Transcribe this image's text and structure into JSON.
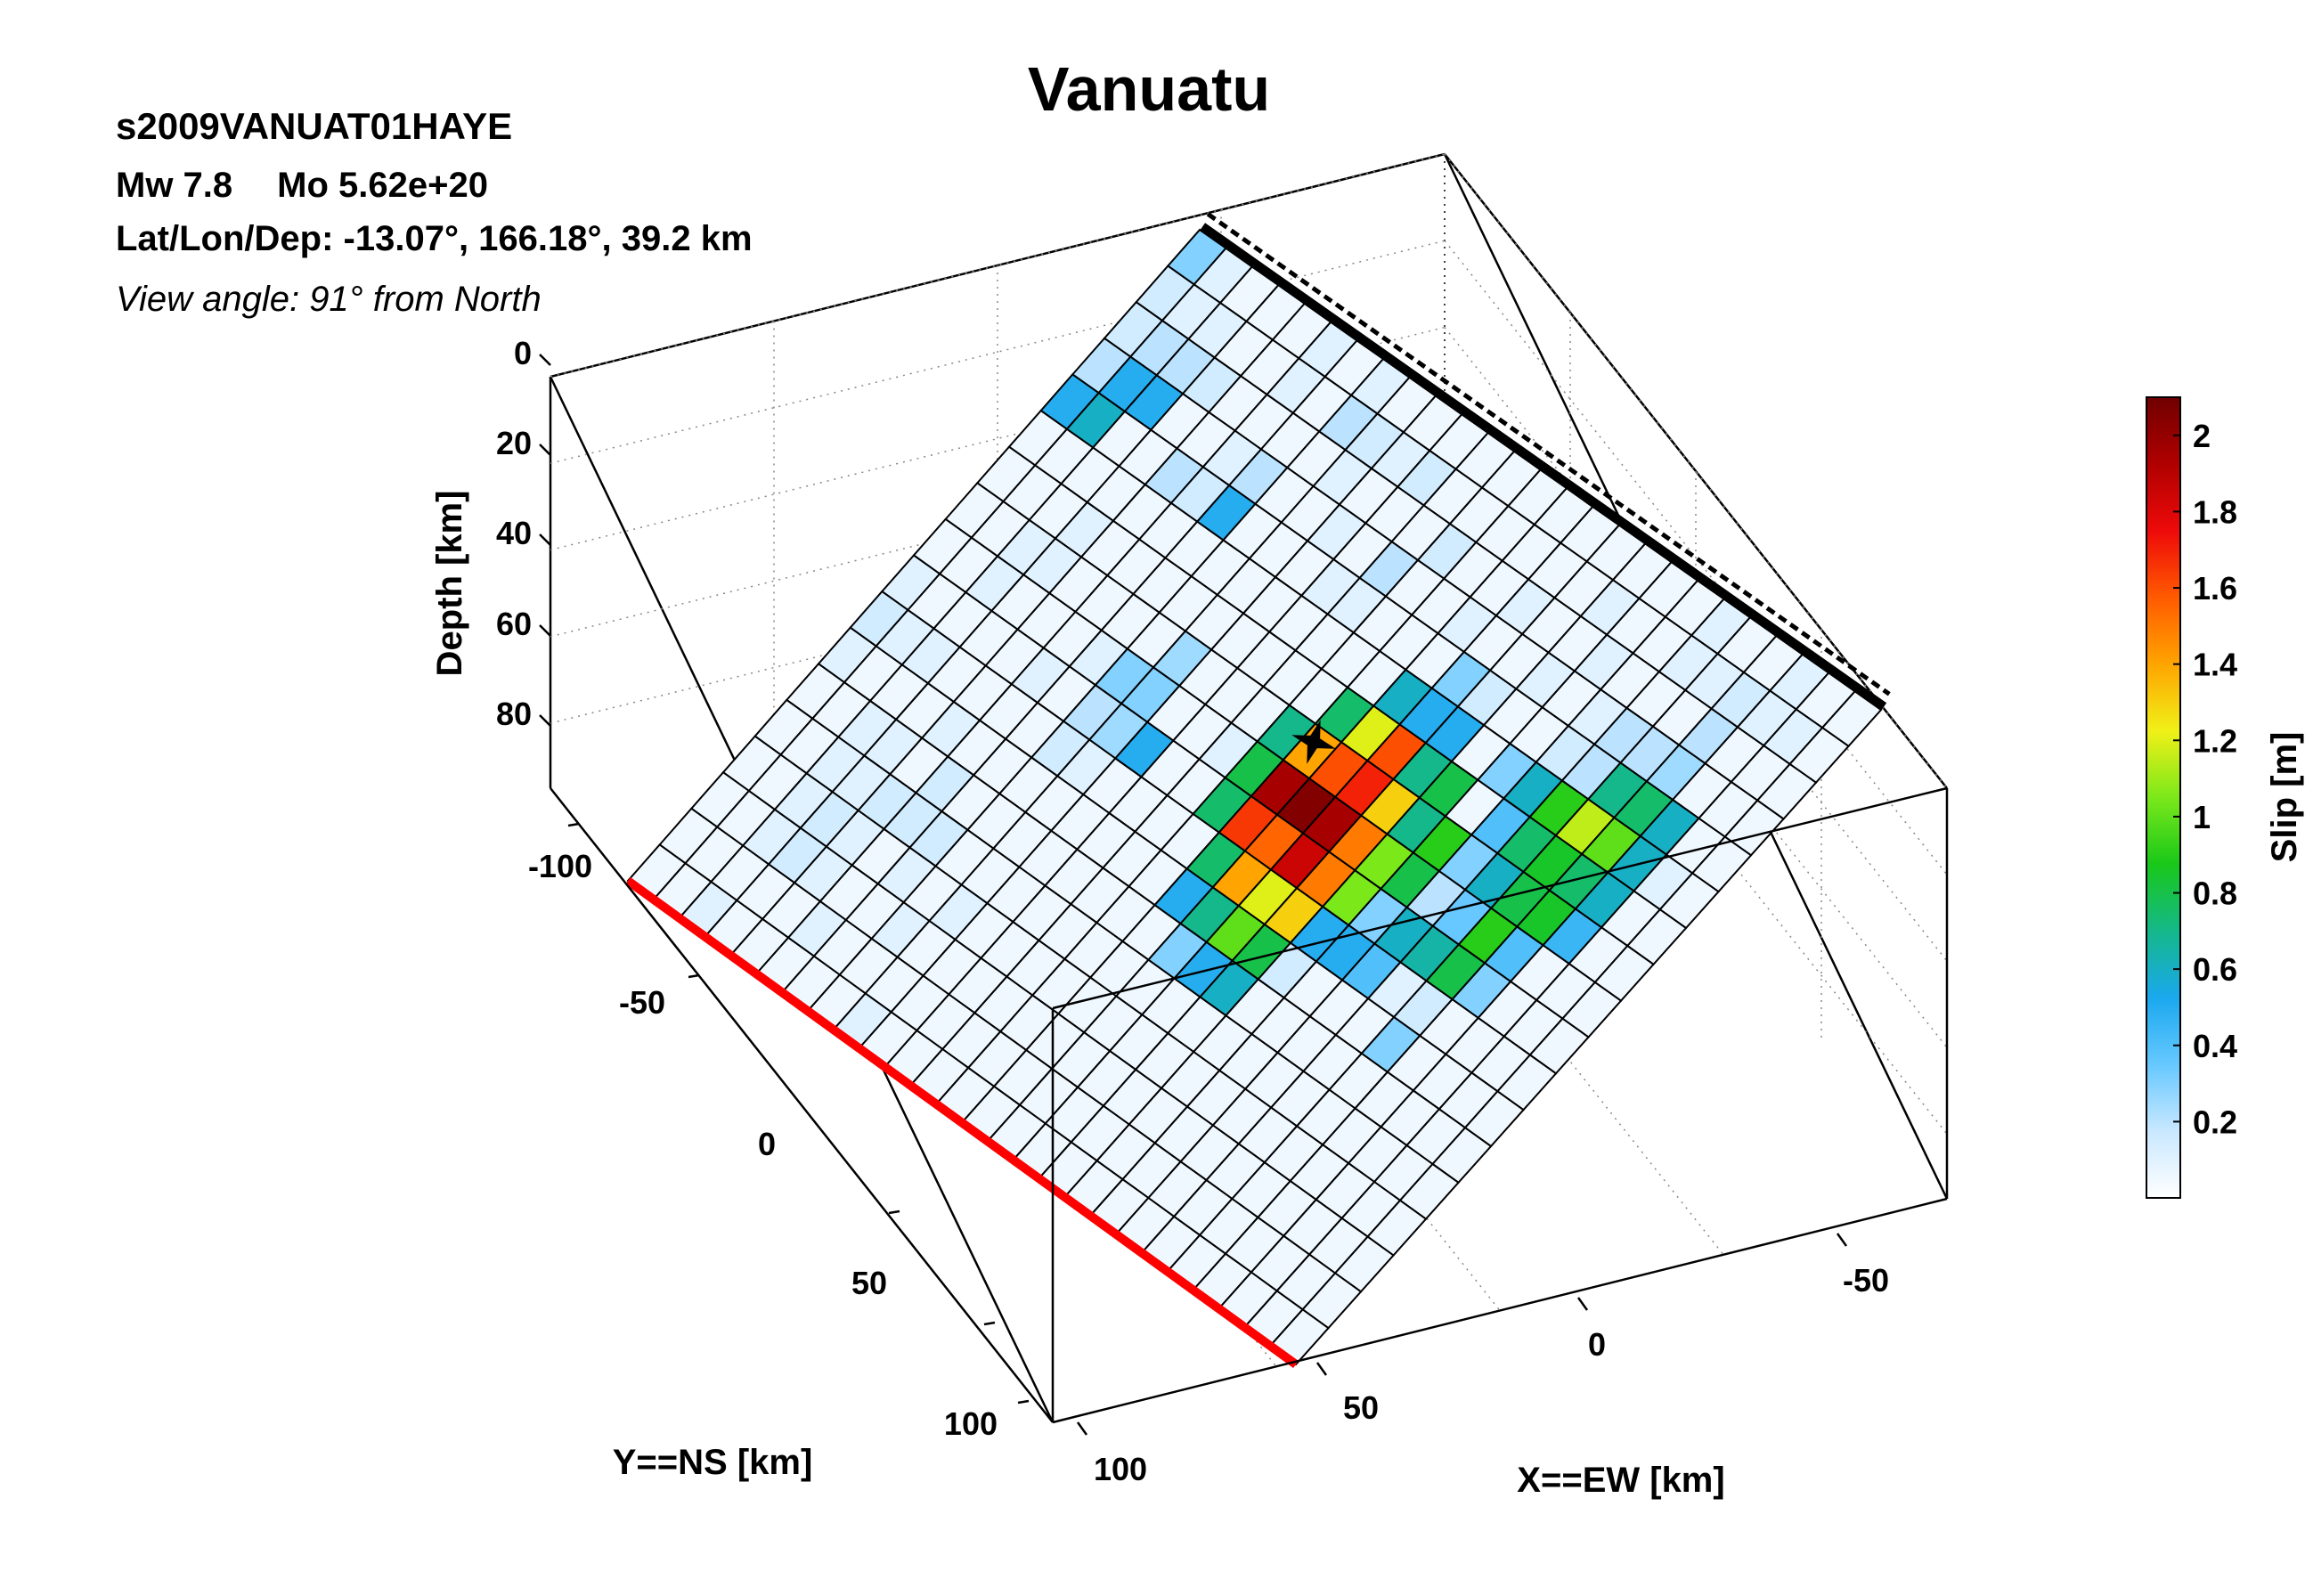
{
  "header": {
    "title": "Vanuatu",
    "event_id": "s2009VANUAT01HAYE",
    "mw": "Mw 7.8",
    "mo": "Mo 5.62e+20",
    "location": "Lat/Lon/Dep: -13.07°, 166.18°, 39.2 km",
    "view_angle": "View angle:  91° from North"
  },
  "colorbar": {
    "label": "Slip [m]",
    "ticks": [
      "0.2",
      "0.4",
      "0.6",
      "0.8",
      "1",
      "1.2",
      "1.4",
      "1.6",
      "1.8",
      "2"
    ],
    "colormap": [
      "#ffffff",
      "#c9e8ff",
      "#66c8ff",
      "#1aa8ee",
      "#14b88a",
      "#19c819",
      "#7be81a",
      "#f0f018",
      "#ffa400",
      "#ff5a00",
      "#ee0a0a",
      "#b00000",
      "#700000"
    ]
  },
  "chart_data": {
    "type": "heatmap",
    "title": "Vanuatu",
    "xlabel": "X==EW [km]",
    "ylabel": "Y==NS [km]",
    "zlabel": "Depth [km]",
    "colorbar_label": "Slip [m]",
    "x_ticks": [
      "-50",
      "0",
      "50",
      "100"
    ],
    "y_ticks": [
      "-100",
      "-50",
      "0",
      "50",
      "100"
    ],
    "z_ticks": [
      "0",
      "20",
      "40",
      "60",
      "80"
    ],
    "xlim": [
      -80,
      110
    ],
    "ylim": [
      -130,
      120
    ],
    "zlim": [
      0,
      95
    ],
    "clim": [
      0,
      2.1
    ],
    "hypocenter": {
      "x": 0,
      "y": -8,
      "depth": 39.2
    },
    "slip_grid": [
      [
        0.3,
        0.15,
        0.15,
        0.2,
        0.5,
        0.05,
        0.05,
        0.05,
        0.05,
        0.1,
        0.15,
        0.1,
        0.05,
        0.05,
        0.05,
        0.05,
        0.05,
        0.05
      ],
      [
        0.1,
        0.1,
        0.2,
        0.5,
        0.6,
        0.05,
        0.05,
        0.05,
        0.05,
        0.05,
        0.1,
        0.05,
        0.05,
        0.05,
        0.05,
        0.05,
        0.05,
        0.05
      ],
      [
        0.05,
        0.1,
        0.2,
        0.5,
        0.05,
        0.05,
        0.05,
        0.1,
        0.1,
        0.05,
        0.1,
        0.05,
        0.1,
        0.1,
        0.1,
        0.1,
        0.05,
        0.1
      ],
      [
        0.05,
        0.05,
        0.15,
        0.05,
        0.05,
        0.05,
        0.1,
        0.1,
        0.05,
        0.05,
        0.05,
        0.05,
        0.1,
        0.1,
        0.15,
        0.15,
        0.05,
        0.05
      ],
      [
        0.05,
        0.05,
        0.05,
        0.05,
        0.2,
        0.05,
        0.05,
        0.05,
        0.05,
        0.05,
        0.05,
        0.1,
        0.05,
        0.15,
        0.1,
        0.1,
        0.05,
        0.05
      ],
      [
        0.1,
        0.1,
        0.05,
        0.1,
        0.15,
        0.05,
        0.05,
        0.05,
        0.05,
        0.1,
        0.05,
        0.05,
        0.15,
        0.15,
        0.05,
        0.05,
        0.1,
        0.05
      ],
      [
        0.05,
        0.05,
        0.05,
        0.2,
        0.5,
        0.05,
        0.05,
        0.05,
        0.1,
        0.05,
        0.05,
        0.05,
        0.05,
        0.15,
        0.1,
        0.05,
        0.05,
        0.05
      ],
      [
        0.1,
        0.2,
        0.05,
        0.05,
        0.05,
        0.05,
        0.05,
        0.05,
        0.3,
        0.2,
        0.15,
        0.05,
        0.05,
        0.05,
        0.05,
        0.1,
        0.05,
        0.05
      ],
      [
        0.05,
        0.15,
        0.1,
        0.05,
        0.05,
        0.05,
        0.05,
        0.25,
        0.3,
        0.25,
        0.1,
        0.05,
        0.05,
        0.05,
        0.1,
        0.05,
        0.05,
        0.1
      ],
      [
        0.05,
        0.1,
        0.05,
        0.1,
        0.05,
        0.05,
        0.05,
        0.05,
        0.05,
        0.5,
        0.05,
        0.05,
        0.05,
        0.05,
        0.05,
        0.05,
        0.05,
        0.05
      ],
      [
        0.05,
        0.15,
        0.05,
        0.05,
        0.1,
        0.05,
        0.05,
        0.05,
        0.05,
        0.05,
        0.05,
        0.05,
        0.05,
        0.05,
        0.05,
        0.05,
        0.05,
        0.05
      ],
      [
        0.05,
        0.05,
        0.05,
        0.2,
        0.1,
        0.05,
        0.05,
        0.05,
        0.1,
        0.05,
        0.05,
        0.05,
        0.05,
        0.05,
        0.05,
        0.05,
        0.05,
        0.05
      ],
      [
        0.05,
        0.05,
        0.15,
        0.05,
        0.05,
        0.05,
        0.05,
        0.7,
        0.8,
        0.75,
        0.05,
        0.05,
        0.05,
        0.05,
        0.05,
        0.05,
        0.05,
        0.05
      ],
      [
        0.05,
        0.05,
        0.05,
        0.05,
        0.05,
        0.05,
        0.75,
        1.4,
        1.95,
        1.65,
        0.75,
        0.5,
        0.05,
        0.05,
        0.05,
        0.05,
        0.05,
        0.05
      ],
      [
        0.05,
        0.05,
        0.05,
        0.1,
        0.05,
        0.6,
        1.2,
        1.6,
        2.05,
        1.55,
        1.4,
        0.7,
        0.3,
        0.05,
        0.05,
        0.05,
        0.05,
        0.05
      ],
      [
        0.05,
        0.05,
        0.1,
        0.05,
        0.3,
        0.5,
        1.6,
        1.7,
        1.95,
        1.85,
        1.2,
        1.0,
        0.5,
        0.05,
        0.05,
        0.05,
        0.05,
        0.05
      ],
      [
        0.05,
        0.05,
        0.05,
        0.05,
        0.15,
        0.5,
        0.7,
        1.3,
        1.5,
        1.5,
        1.3,
        0.8,
        0.6,
        0.05,
        0.05,
        0.05,
        0.05,
        0.05
      ],
      [
        0.05,
        0.1,
        0.05,
        0.1,
        0.05,
        0.05,
        0.8,
        0.7,
        1.05,
        1.05,
        0.5,
        0.15,
        0.05,
        0.05,
        0.05,
        0.05,
        0.05,
        0.05
      ],
      [
        0.05,
        0.05,
        0.1,
        0.05,
        0.05,
        0.3,
        0.05,
        0.9,
        0.8,
        0.3,
        0.5,
        0.05,
        0.05,
        0.05,
        0.05,
        0.05,
        0.05,
        0.05
      ],
      [
        0.05,
        0.05,
        0.05,
        0.1,
        0.15,
        0.6,
        0.4,
        0.3,
        0.2,
        0.6,
        0.4,
        0.05,
        0.05,
        0.05,
        0.05,
        0.05,
        0.05,
        0.05
      ],
      [
        0.1,
        0.1,
        0.05,
        0.2,
        0.2,
        0.9,
        0.75,
        0.6,
        0.35,
        0.65,
        0.1,
        0.05,
        0.05,
        0.05,
        0.05,
        0.05,
        0.05,
        0.05
      ],
      [
        0.05,
        0.1,
        0.05,
        0.2,
        0.7,
        1.15,
        0.85,
        0.8,
        0.9,
        0.8,
        0.15,
        0.3,
        0.05,
        0.05,
        0.05,
        0.05,
        0.05,
        0.05
      ],
      [
        0.05,
        0.15,
        0.2,
        0.25,
        0.75,
        1.0,
        0.75,
        0.85,
        0.4,
        0.3,
        0.05,
        0.05,
        0.05,
        0.05,
        0.05,
        0.05,
        0.05,
        0.05
      ],
      [
        0.1,
        0.1,
        0.05,
        0.05,
        0.6,
        0.6,
        0.6,
        0.45,
        0.05,
        0.05,
        0.05,
        0.05,
        0.05,
        0.05,
        0.05,
        0.05,
        0.05,
        0.05
      ],
      [
        0.05,
        0.1,
        0.05,
        0.05,
        0.05,
        0.1,
        0.05,
        0.05,
        0.05,
        0.05,
        0.05,
        0.05,
        0.05,
        0.05,
        0.05,
        0.05,
        0.05,
        0.05
      ],
      [
        0.05,
        0.05,
        0.05,
        0.05,
        0.05,
        0.05,
        0.05,
        0.05,
        0.05,
        0.05,
        0.05,
        0.05,
        0.05,
        0.05,
        0.05,
        0.05,
        0.05,
        0.05
      ]
    ]
  }
}
